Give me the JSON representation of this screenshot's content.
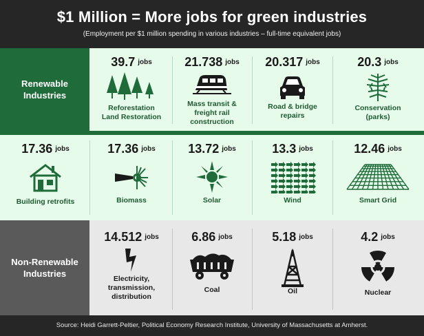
{
  "header": {
    "title": "$1 Million = More jobs for green industries",
    "subtitle": "(Employment per $1 million spending in various industries – full-time equivalent jobs)"
  },
  "sections": {
    "renewable": "Renewable Industries",
    "non_renewable": "Non-Renewable Industries"
  },
  "unit": "jobs",
  "renewable_row1": [
    {
      "value": "39.7",
      "label": [
        "Reforestation",
        "Land Restoration"
      ],
      "icon": "trees-icon"
    },
    {
      "value": "21.738",
      "label": [
        "Mass transit &",
        "freight rail",
        "construction"
      ],
      "icon": "train-icon"
    },
    {
      "value": "20.317",
      "label": [
        "Road & bridge",
        "repairs"
      ],
      "icon": "car-icon"
    },
    {
      "value": "20.3",
      "label": [
        "Conservation",
        "(parks)"
      ],
      "icon": "pine-branch-icon"
    }
  ],
  "renewable_row2": [
    {
      "value": "17.36",
      "label": [
        "Building retrofits"
      ],
      "icon": "house-icon"
    },
    {
      "value": "17.36",
      "label": [
        "Biomass"
      ],
      "icon": "biomass-icon"
    },
    {
      "value": "13.72",
      "label": [
        "Solar"
      ],
      "icon": "sun-icon"
    },
    {
      "value": "13.3",
      "label": [
        "Wind"
      ],
      "icon": "wind-arrows-icon"
    },
    {
      "value": "12.46",
      "label": [
        "Smart Grid"
      ],
      "icon": "grid-icon"
    }
  ],
  "non_renewable": [
    {
      "value": "14.512",
      "label": [
        "Electricity,",
        "transmission,",
        "distribution"
      ],
      "icon": "lightning-icon"
    },
    {
      "value": "6.86",
      "label": [
        "Coal"
      ],
      "icon": "coal-cart-icon"
    },
    {
      "value": "5.18",
      "label": [
        "Oil"
      ],
      "icon": "oil-derrick-icon"
    },
    {
      "value": "4.2",
      "label": [
        "Nuclear"
      ],
      "icon": "radiation-icon"
    }
  ],
  "footer": "Source: Heidi Garrett-Peltier, Political Economy Research Institute, University of Massachusetts at Amherst.",
  "colors": {
    "green": "#1f6b3a",
    "dark": "#262626",
    "gray": "#5a5a5a",
    "mint": "#e6fbea"
  }
}
